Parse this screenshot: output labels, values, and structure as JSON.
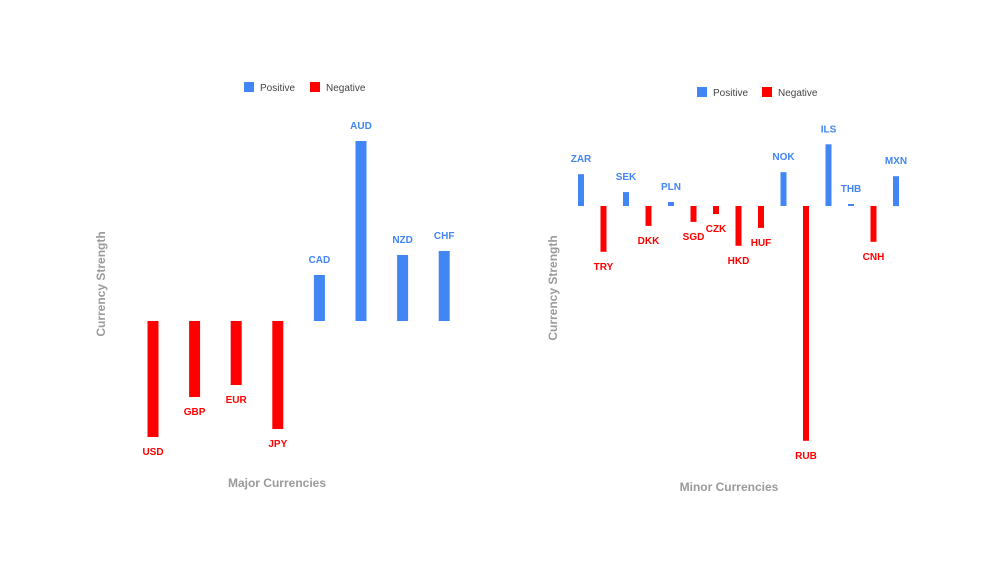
{
  "colors": {
    "positive": "#4285f4",
    "negative": "#ff0000",
    "axis_title": "#9a9a9a"
  },
  "chart_data": [
    {
      "type": "bar",
      "xlabel": "Major Currencies",
      "ylabel": "Currency Strength",
      "legend": {
        "position": "top",
        "entries": [
          "Positive",
          "Negative"
        ]
      },
      "grid": false,
      "categories": [
        "USD",
        "GBP",
        "EUR",
        "JPY",
        "CAD",
        "AUD",
        "NZD",
        "CHF"
      ],
      "values": [
        -58,
        -38,
        -32,
        -54,
        23,
        90,
        33,
        35
      ],
      "ylim": [
        -70,
        100
      ]
    },
    {
      "type": "bar",
      "xlabel": "Minor Currencies",
      "ylabel": "Currency Strength",
      "legend": {
        "position": "top",
        "entries": [
          "Positive",
          "Negative"
        ]
      },
      "grid": false,
      "categories": [
        "ZAR",
        "TRY",
        "SEK",
        "DKK",
        "PLN",
        "SGD",
        "CZK",
        "HKD",
        "HUF",
        "NOK",
        "RUB",
        "ILS",
        "THB",
        "CNH",
        "MXN"
      ],
      "values": [
        16,
        -23,
        7,
        -10,
        2,
        -8,
        -4,
        -20,
        -11,
        17,
        -118,
        31,
        1,
        -18,
        15
      ],
      "ylim": [
        -125,
        40
      ]
    }
  ]
}
